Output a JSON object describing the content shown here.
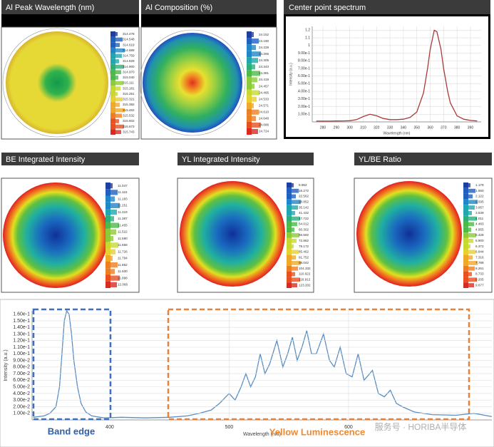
{
  "panels": [
    {
      "title": "Al Peak Wavelength (nm)",
      "scale": [
        "314.478",
        "314.548",
        "314.619",
        "314.689",
        "314.759",
        "314.829",
        "314.900",
        "314.970",
        "315.040",
        "315.111",
        "315.181",
        "315.251",
        "315.321",
        "315.392",
        "315.462",
        "315.532",
        "315.602",
        "315.673",
        "315.743"
      ]
    },
    {
      "title": "Al Composition (%)",
      "scale": [
        "24.152",
        "24.190",
        "24.228",
        "24.266",
        "24.305",
        "24.343",
        "24.381",
        "24.419",
        "24.457",
        "24.495",
        "24.533",
        "24.571",
        "24.610",
        "24.648",
        "24.686",
        "24.724"
      ]
    },
    {
      "title": "BE Integrated Intensity",
      "scale": [
        "11.047",
        "11.115",
        "11.183",
        "11.251",
        "11.319",
        "11.387",
        "11.455",
        "11.522",
        "11.590",
        "11.658",
        "11.726",
        "11.794",
        "11.862",
        "11.930",
        "11.998",
        "12.066"
      ]
    },
    {
      "title": "YL Integrated Intensity",
      "scale": [
        "9.982",
        "16.272",
        "22.562",
        "28.852",
        "35.142",
        "41.432",
        "47.722",
        "54.012",
        "60.302",
        "66.592",
        "72.882",
        "79.172",
        "85.462",
        "91.752",
        "98.042",
        "104.332",
        "110.622",
        "116.912",
        "123.202"
      ]
    },
    {
      "title": "YL/BE Ratio",
      "scale": [
        "1.178",
        "1.650",
        "2.122",
        "2.595",
        "3.067",
        "3.539",
        "4.011",
        "4.483",
        "4.955",
        "5.428",
        "5.900",
        "6.372",
        "6.844",
        "7.316",
        "7.788",
        "8.261",
        "8.733",
        "9.205",
        "9.677"
      ]
    }
  ],
  "chart_data": [
    {
      "type": "line",
      "title": "Center point spectrum",
      "x_label": "Wavelength (nm)",
      "y_label": "Intensity (a.u.)",
      "x": [
        275,
        280,
        285,
        290,
        295,
        300,
        305,
        310,
        315,
        320,
        325,
        330,
        335,
        340,
        345,
        350,
        355,
        358,
        360,
        363,
        365,
        368,
        370,
        373,
        375,
        380,
        385,
        390,
        395
      ],
      "series": [
        {
          "color": "#a83a3a",
          "values": [
            0.01,
            0.01,
            0.01,
            0.012,
            0.013,
            0.016,
            0.03,
            0.07,
            0.1,
            0.08,
            0.045,
            0.03,
            0.03,
            0.035,
            0.06,
            0.13,
            0.38,
            0.7,
            0.95,
            1.2,
            1.18,
            0.95,
            0.7,
            0.4,
            0.25,
            0.08,
            0.035,
            0.02,
            0.012
          ]
        }
      ],
      "xlim": [
        272,
        398
      ],
      "ylim": [
        0,
        1.25
      ],
      "xticks": [
        280,
        290,
        300,
        310,
        320,
        330,
        340,
        350,
        360,
        370,
        380,
        390
      ],
      "yticks": [
        {
          "value": 0.1,
          "label": "1.00e-1"
        },
        {
          "value": 0.2,
          "label": "2.00e-1"
        },
        {
          "value": 0.3,
          "label": "3.00e-1"
        },
        {
          "value": 0.4,
          "label": "4.00e-1"
        },
        {
          "value": 0.5,
          "label": "5.00e-1"
        },
        {
          "value": 0.6,
          "label": "6.00e-1"
        },
        {
          "value": 0.7,
          "label": "7.00e-1"
        },
        {
          "value": 0.8,
          "label": "8.00e-1"
        },
        {
          "value": 0.9,
          "label": "9.00e-1"
        },
        1,
        1.1,
        1.2
      ],
      "grid": true
    },
    {
      "type": "line",
      "x_label": "Wavelength (nm)",
      "y_label": "Intensity (a.u.)",
      "x": [
        336,
        345,
        350,
        355,
        358,
        360,
        362,
        364,
        366,
        368,
        370,
        373,
        376,
        380,
        385,
        395,
        410,
        430,
        450,
        465,
        475,
        485,
        492,
        500,
        505,
        510,
        514,
        518,
        522,
        526,
        530,
        534,
        540,
        545,
        549,
        553,
        557,
        561,
        565,
        569,
        573,
        579,
        584,
        588,
        593,
        598,
        603,
        608,
        613,
        620,
        625,
        630,
        635,
        640,
        645,
        655,
        670,
        690,
        705,
        720
      ],
      "series": [
        {
          "color": "#5b8ec4",
          "values": [
            0.004,
            0.006,
            0.01,
            0.02,
            0.05,
            0.1,
            0.15,
            0.165,
            0.16,
            0.13,
            0.09,
            0.05,
            0.025,
            0.012,
            0.006,
            0.003,
            0.004,
            0.003,
            0.004,
            0.006,
            0.01,
            0.015,
            0.025,
            0.04,
            0.03,
            0.05,
            0.07,
            0.05,
            0.065,
            0.1,
            0.07,
            0.085,
            0.12,
            0.08,
            0.1,
            0.125,
            0.09,
            0.11,
            0.135,
            0.1,
            0.1,
            0.13,
            0.09,
            0.08,
            0.11,
            0.07,
            0.065,
            0.1,
            0.06,
            0.075,
            0.04,
            0.035,
            0.045,
            0.025,
            0.02,
            0.012,
            0.008,
            0.007,
            0.01,
            0.005
          ]
        }
      ],
      "xlim": [
        335,
        720
      ],
      "ylim": [
        0,
        0.165
      ],
      "xticks": [
        400,
        500,
        600
      ],
      "yticks": [
        {
          "value": 0.01,
          "label": "1.00e-2"
        },
        {
          "value": 0.02,
          "label": "2.00e-2"
        },
        {
          "value": 0.03,
          "label": "3.00e-2"
        },
        {
          "value": 0.04,
          "label": "4.00e-2"
        },
        {
          "value": 0.05,
          "label": "5.00e-2"
        },
        {
          "value": 0.06,
          "label": "6.00e-2"
        },
        {
          "value": 0.07,
          "label": "7.00e-2"
        },
        {
          "value": 0.08,
          "label": "8.00e-2"
        },
        {
          "value": 0.09,
          "label": "9.00e-2"
        },
        {
          "value": 0.1,
          "label": "1.00e-1"
        },
        {
          "value": 0.11,
          "label": "1.10e-1"
        },
        {
          "value": 0.12,
          "label": "1.20e-1"
        },
        {
          "value": 0.13,
          "label": "1.30e-1"
        },
        {
          "value": 0.14,
          "label": "1.40e-1"
        },
        {
          "value": 0.15,
          "label": "1.50e-1"
        },
        {
          "value": 0.16,
          "label": "1.60e-1"
        }
      ],
      "grid": true,
      "annotations": [
        "Band edge",
        "Yellow Luminescence"
      ]
    }
  ],
  "watermark": "服务号 · HORIBA半导体"
}
